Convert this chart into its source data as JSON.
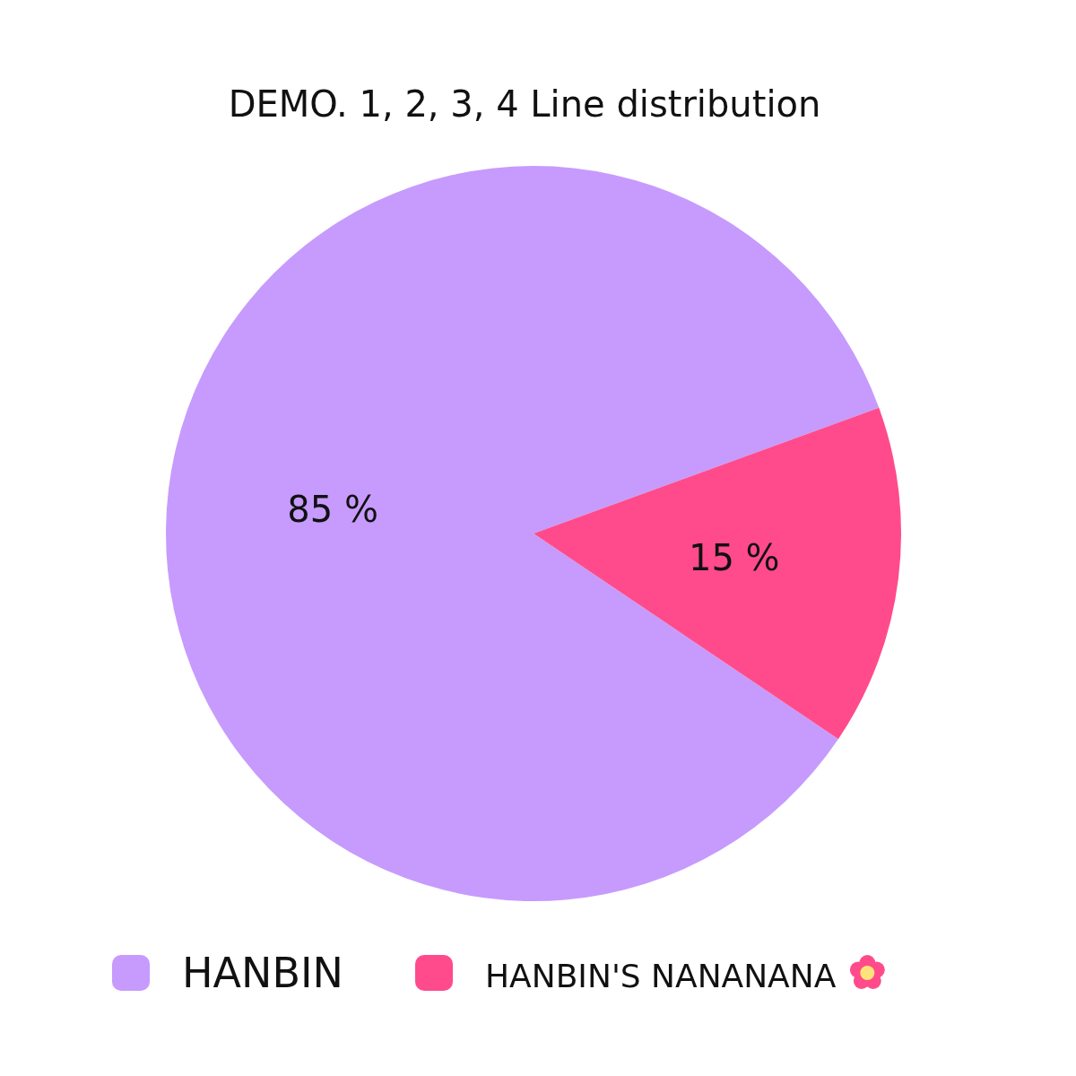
{
  "chart_data": {
    "type": "pie",
    "title": "DEMO. 1, 2, 3, 4 Line distribution",
    "categories": [
      "HANBIN",
      "HANBIN'S NANANANA"
    ],
    "values": [
      85,
      15
    ],
    "colors": [
      "#c69bfd",
      "#ff4b8b"
    ],
    "value_labels": [
      "85 %",
      "15 %"
    ],
    "legend": "bottom"
  }
}
